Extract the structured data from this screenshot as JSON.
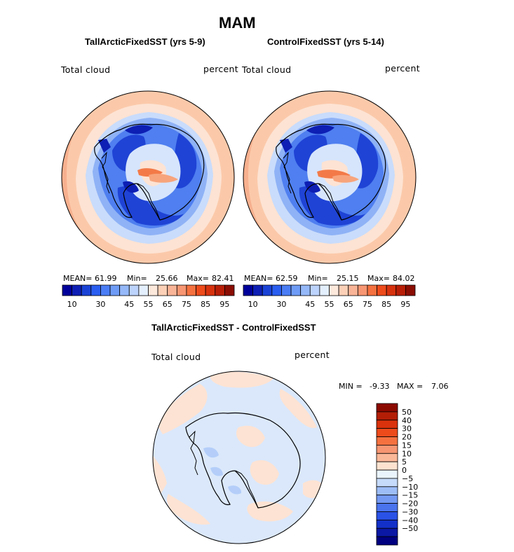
{
  "figure": {
    "season_title": "MAM"
  },
  "chart_data": [
    {
      "type": "heatmap",
      "title": "TallArcticFixedSST (yrs 5-9)",
      "variable": "Total cloud",
      "units": "percent",
      "mean_label": "MEAN=",
      "mean": "61.99",
      "min_label": "Min=",
      "min": "25.66",
      "max_label": "Max=",
      "max": "82.41",
      "colorbar_levels": [
        10,
        15,
        20,
        25,
        30,
        35,
        40,
        45,
        50,
        55,
        60,
        65,
        70,
        75,
        80,
        85,
        90,
        95
      ],
      "colorbar_tick_labels": [
        "10",
        "30",
        "45",
        "55",
        "65",
        "75",
        "85",
        "95"
      ],
      "colorbar_colors": [
        "#00009b",
        "#0d1fb4",
        "#1a43d6",
        "#2a5ef0",
        "#4a7df5",
        "#6e9bf5",
        "#94b8f8",
        "#bcd3fb",
        "#e4effd",
        "#fde8dc",
        "#fbd0b6",
        "#f9b497",
        "#f79672",
        "#f5713f",
        "#ee4b1b",
        "#d7320e",
        "#b81e07",
        "#8a0d03"
      ],
      "projection": "south polar stereographic"
    },
    {
      "type": "heatmap",
      "title": "ControlFixedSST (yrs 5-14)",
      "variable": "Total cloud",
      "units": "percent",
      "mean_label": "MEAN=",
      "mean": "62.59",
      "min_label": "Min=",
      "min": "25.15",
      "max_label": "Max=",
      "max": "84.02",
      "colorbar_levels": [
        10,
        15,
        20,
        25,
        30,
        35,
        40,
        45,
        50,
        55,
        60,
        65,
        70,
        75,
        80,
        85,
        90,
        95
      ],
      "colorbar_tick_labels": [
        "10",
        "30",
        "45",
        "55",
        "65",
        "75",
        "85",
        "95"
      ],
      "colorbar_colors": [
        "#00009b",
        "#0d1fb4",
        "#1a43d6",
        "#2a5ef0",
        "#4a7df5",
        "#6e9bf5",
        "#94b8f8",
        "#bcd3fb",
        "#e4effd",
        "#fde8dc",
        "#fbd0b6",
        "#f9b497",
        "#f79672",
        "#f5713f",
        "#ee4b1b",
        "#d7320e",
        "#b81e07",
        "#8a0d03"
      ],
      "projection": "south polar stereographic"
    },
    {
      "type": "heatmap",
      "title": "TallArcticFixedSST - ControlFixedSST",
      "variable": "Total cloud",
      "units": "percent",
      "min_label": "MIN =",
      "min": "-9.33",
      "max_label": "MAX =",
      "max": "7.06",
      "colorbar_tick_labels": [
        "50",
        "40",
        "30",
        "20",
        "15",
        "10",
        "5",
        "0",
        "−5",
        "−10",
        "−15",
        "−20",
        "−30",
        "−40",
        "−50"
      ],
      "colorbar_colors": [
        "#8b0a00",
        "#b31e06",
        "#d9320c",
        "#ee4b1b",
        "#f5713f",
        "#f79672",
        "#fbb898",
        "#fde2cf",
        "#eaf4fc",
        "#c6dbfa",
        "#9dbdf7",
        "#7399f2",
        "#4a74ee",
        "#2a52e6",
        "#1331c8",
        "#0a18a4",
        "#000080"
      ],
      "projection": "south polar stereographic"
    }
  ]
}
